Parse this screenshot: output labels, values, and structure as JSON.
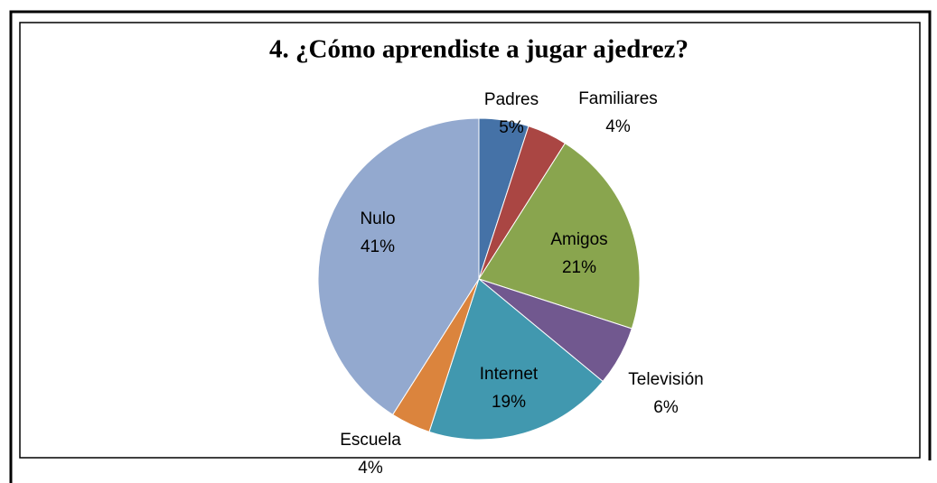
{
  "chart_data": {
    "type": "pie",
    "title": "4. ¿Cómo aprendiste a jugar ajedrez?",
    "categories": [
      "Padres",
      "Familiares",
      "Amigos",
      "Televisión",
      "Internet",
      "Escuela",
      "Nulo"
    ],
    "values": [
      5,
      4,
      21,
      6,
      19,
      4,
      41
    ],
    "value_labels": [
      "5%",
      "4%",
      "21%",
      "6%",
      "19%",
      "4%",
      "41%"
    ],
    "colors": [
      "#4572a7",
      "#aa4643",
      "#89a54e",
      "#71588f",
      "#4198af",
      "#db843d",
      "#93a9cf"
    ]
  }
}
